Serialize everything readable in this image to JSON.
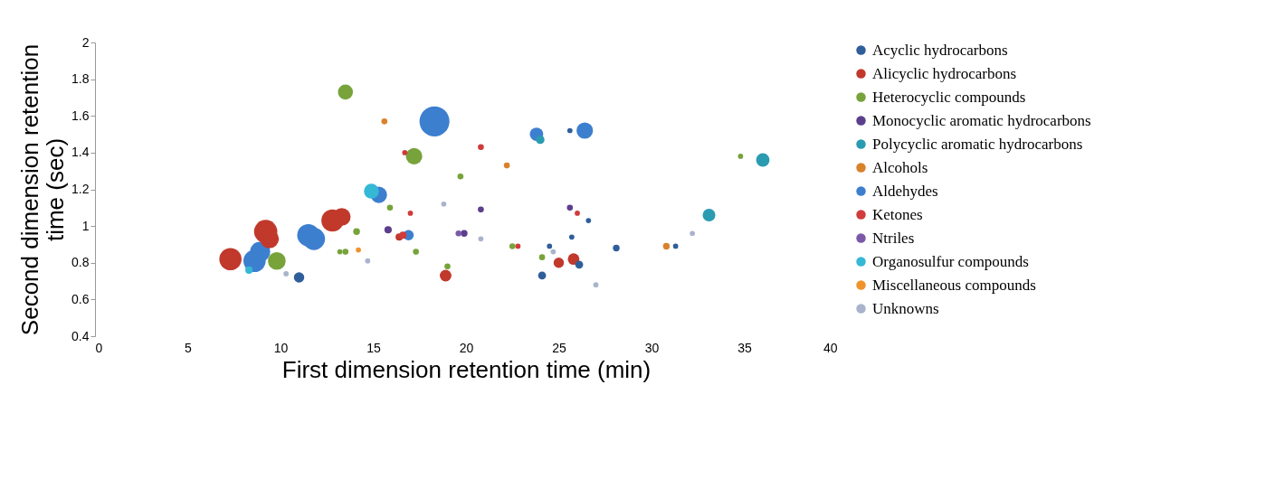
{
  "chart_data": {
    "type": "bubble",
    "xlabel": "First dimension retention time (min)",
    "ylabel": "Second dimension retention time (sec)",
    "xlim": [
      0,
      40
    ],
    "xticks": [
      0,
      5,
      10,
      15,
      20,
      25,
      30,
      35,
      40
    ],
    "ylim": [
      0.4,
      2
    ],
    "yticks": [
      0.4,
      0.6,
      0.8,
      1,
      1.2,
      1.4,
      1.6,
      1.8,
      2
    ],
    "grid": false,
    "legend": "right",
    "series": [
      {
        "name": "Acyclic hydrocarbons",
        "color": "#2f5f9a",
        "x": [
          11.0,
          24.1,
          26.1,
          28.1,
          25.6,
          26.6,
          31.3,
          24.5,
          25.7
        ],
        "values": [
          0.72,
          0.73,
          0.79,
          0.88,
          1.52,
          1.03,
          0.89,
          0.89,
          0.94
        ],
        "sizes": [
          0.12,
          0.07,
          0.07,
          0.05,
          0.03,
          0.03,
          0.03,
          0.03,
          0.03
        ]
      },
      {
        "name": "Alicyclic hydrocarbons",
        "color": "#c0392b",
        "x": [
          9.2,
          9.4,
          12.8,
          13.3,
          7.3,
          18.9,
          25.0,
          25.8,
          16.4
        ],
        "values": [
          0.97,
          0.93,
          1.03,
          1.05,
          0.82,
          0.73,
          0.8,
          0.82,
          0.94
        ],
        "sizes": [
          0.6,
          0.4,
          0.55,
          0.35,
          0.55,
          0.15,
          0.12,
          0.15,
          0.06
        ]
      },
      {
        "name": "Heterocyclic compounds",
        "color": "#77a33a",
        "x": [
          13.5,
          17.2,
          9.8,
          14.1,
          13.5,
          13.2,
          17.3,
          19.0,
          22.5,
          24.1,
          34.8,
          15.9,
          19.7
        ],
        "values": [
          1.73,
          1.38,
          0.81,
          0.97,
          0.86,
          0.86,
          0.86,
          0.78,
          0.89,
          0.83,
          1.38,
          1.1,
          1.27
        ],
        "sizes": [
          0.25,
          0.3,
          0.35,
          0.05,
          0.04,
          0.03,
          0.04,
          0.04,
          0.04,
          0.04,
          0.03,
          0.04,
          0.04
        ]
      },
      {
        "name": "Monocyclic aromatic hydrocarbons",
        "color": "#5b3f8c",
        "x": [
          15.8,
          19.9,
          20.8,
          25.6
        ],
        "values": [
          0.98,
          0.96,
          1.09,
          1.1
        ],
        "sizes": [
          0.06,
          0.05,
          0.04,
          0.04
        ]
      },
      {
        "name": "Polycyclic aromatic hydrocarbons",
        "color": "#2a9bb0",
        "x": [
          33.1,
          36.0,
          24.0
        ],
        "values": [
          1.06,
          1.36,
          1.47
        ],
        "sizes": [
          0.18,
          0.2,
          0.08
        ]
      },
      {
        "name": "Alcohols",
        "color": "#d9822b",
        "x": [
          15.6,
          22.2,
          30.8
        ],
        "values": [
          1.57,
          1.33,
          0.89
        ],
        "sizes": [
          0.04,
          0.04,
          0.05
        ]
      },
      {
        "name": "Aldehydes",
        "color": "#3d7fcf",
        "x": [
          18.3,
          23.8,
          26.4,
          15.3,
          11.5,
          11.8,
          8.9,
          8.6,
          16.9
        ],
        "values": [
          1.57,
          1.5,
          1.52,
          1.17,
          0.95,
          0.93,
          0.86,
          0.81,
          0.95
        ],
        "sizes": [
          1,
          0.2,
          0.3,
          0.3,
          0.55,
          0.55,
          0.45,
          0.55,
          0.12
        ]
      },
      {
        "name": "Ketones",
        "color": "#d13b3b",
        "x": [
          20.8,
          16.7,
          17.0,
          26.0,
          16.6,
          22.8
        ],
        "values": [
          1.43,
          1.4,
          1.07,
          1.07,
          0.95,
          0.89
        ],
        "sizes": [
          0.04,
          0.03,
          0.03,
          0.03,
          0.06,
          0.03
        ]
      },
      {
        "name": "Ntriles",
        "color": "#7a5aa8",
        "x": [
          19.6
        ],
        "values": [
          0.96
        ],
        "sizes": [
          0.04
        ]
      },
      {
        "name": "Organosulfur compounds",
        "color": "#35b8d6",
        "x": [
          14.9,
          8.3
        ],
        "values": [
          1.19,
          0.76
        ],
        "sizes": [
          0.25,
          0.06
        ]
      },
      {
        "name": "Miscellaneous compounds",
        "color": "#f0932b",
        "x": [
          14.2
        ],
        "values": [
          0.87
        ],
        "sizes": [
          0.03
        ]
      },
      {
        "name": "Unknowns",
        "color": "#a9b4cc",
        "x": [
          18.8,
          10.3,
          14.7,
          20.8,
          24.7,
          27.0,
          32.2
        ],
        "values": [
          1.12,
          0.74,
          0.81,
          0.93,
          0.86,
          0.68,
          0.96
        ],
        "sizes": [
          0.03,
          0.03,
          0.03,
          0.03,
          0.03,
          0.03,
          0.03
        ]
      }
    ]
  }
}
